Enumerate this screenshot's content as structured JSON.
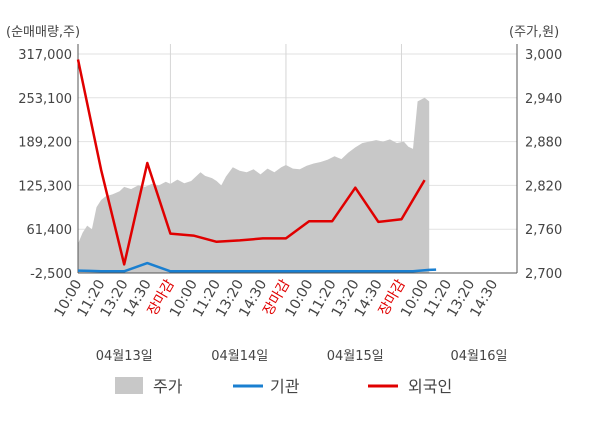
{
  "chart_data": {
    "type": "line",
    "left_axis_title": "(순매매량,주)",
    "right_axis_title": "(주가,원)",
    "left_ticks": [
      "317,000",
      "253,100",
      "189,200",
      "125,300",
      "61,400",
      "-2,500"
    ],
    "right_ticks": [
      "3,000",
      "2,940",
      "2,880",
      "2,820",
      "2,760",
      "2,700"
    ],
    "left_ylim": [
      -2500,
      317000
    ],
    "right_ylim": [
      2700,
      3000
    ],
    "x_tick_labels": [
      "10:00",
      "11:20",
      "13:20",
      "14:30",
      "장마감",
      "10:00",
      "11:20",
      "13:20",
      "14:30",
      "장마감",
      "10:00",
      "11:20",
      "13:20",
      "14:30",
      "장마감",
      "10:00",
      "11:20",
      "13:20",
      "14:30"
    ],
    "closing_label": "장마감",
    "dates": [
      "04월13일",
      "04월14일",
      "04월15일",
      "04월16일"
    ],
    "legend": [
      "주가",
      "기관",
      "외국인"
    ],
    "colors": {
      "price": "#c8c8c8",
      "institution": "#1a7fd0",
      "foreign": "#e00000",
      "closing_label": "#e00000",
      "text": "#444444",
      "axis": "#555555"
    },
    "x_index_max": 19,
    "price_series_right_axis": [
      [
        0.0,
        2740
      ],
      [
        0.2,
        2755
      ],
      [
        0.4,
        2765
      ],
      [
        0.6,
        2760
      ],
      [
        0.8,
        2790
      ],
      [
        1.0,
        2800
      ],
      [
        1.2,
        2805
      ],
      [
        1.5,
        2808
      ],
      [
        1.8,
        2812
      ],
      [
        2.0,
        2818
      ],
      [
        2.3,
        2815
      ],
      [
        2.6,
        2820
      ],
      [
        2.9,
        2818
      ],
      [
        3.2,
        2822
      ],
      [
        3.5,
        2820
      ],
      [
        3.8,
        2825
      ],
      [
        4.0,
        2822
      ],
      [
        4.3,
        2828
      ],
      [
        4.6,
        2823
      ],
      [
        4.9,
        2826
      ],
      [
        5.1,
        2832
      ],
      [
        5.3,
        2838
      ],
      [
        5.5,
        2833
      ],
      [
        5.8,
        2830
      ],
      [
        6.0,
        2826
      ],
      [
        6.2,
        2820
      ],
      [
        6.4,
        2832
      ],
      [
        6.7,
        2845
      ],
      [
        7.0,
        2840
      ],
      [
        7.3,
        2838
      ],
      [
        7.6,
        2842
      ],
      [
        7.9,
        2835
      ],
      [
        8.2,
        2843
      ],
      [
        8.5,
        2838
      ],
      [
        8.8,
        2845
      ],
      [
        9.0,
        2848
      ],
      [
        9.3,
        2843
      ],
      [
        9.6,
        2842
      ],
      [
        9.9,
        2847
      ],
      [
        10.2,
        2850
      ],
      [
        10.5,
        2852
      ],
      [
        10.8,
        2855
      ],
      [
        11.1,
        2860
      ],
      [
        11.4,
        2856
      ],
      [
        11.7,
        2865
      ],
      [
        12.0,
        2872
      ],
      [
        12.3,
        2878
      ],
      [
        12.6,
        2880
      ],
      [
        12.9,
        2882
      ],
      [
        13.2,
        2880
      ],
      [
        13.5,
        2883
      ],
      [
        13.8,
        2878
      ],
      [
        14.1,
        2880
      ],
      [
        14.3,
        2873
      ],
      [
        14.5,
        2870
      ],
      [
        14.7,
        2935
      ],
      [
        15.0,
        2940
      ],
      [
        15.2,
        2935
      ]
    ],
    "institution_series": [
      [
        0,
        1000
      ],
      [
        0.5,
        500
      ],
      [
        1,
        0
      ],
      [
        2,
        0
      ],
      [
        3,
        12000
      ],
      [
        4,
        0
      ],
      [
        5,
        0
      ],
      [
        6,
        0
      ],
      [
        7,
        0
      ],
      [
        8,
        0
      ],
      [
        9,
        0
      ],
      [
        10,
        0
      ],
      [
        11,
        0
      ],
      [
        12,
        0
      ],
      [
        13,
        0
      ],
      [
        14,
        0
      ],
      [
        14.5,
        0
      ],
      [
        15.2,
        2000
      ],
      [
        15.5,
        2500
      ]
    ],
    "foreign_series": [
      [
        0,
        309000
      ],
      [
        1,
        148000
      ],
      [
        2,
        10000
      ],
      [
        3,
        158000
      ],
      [
        4,
        55000
      ],
      [
        5,
        52000
      ],
      [
        6,
        43000
      ],
      [
        7,
        45000
      ],
      [
        8,
        48000
      ],
      [
        9,
        48000
      ],
      [
        10,
        73000
      ],
      [
        11,
        73000
      ],
      [
        12,
        122000
      ],
      [
        13,
        72000
      ],
      [
        14,
        76000
      ],
      [
        15,
        133000
      ]
    ]
  }
}
